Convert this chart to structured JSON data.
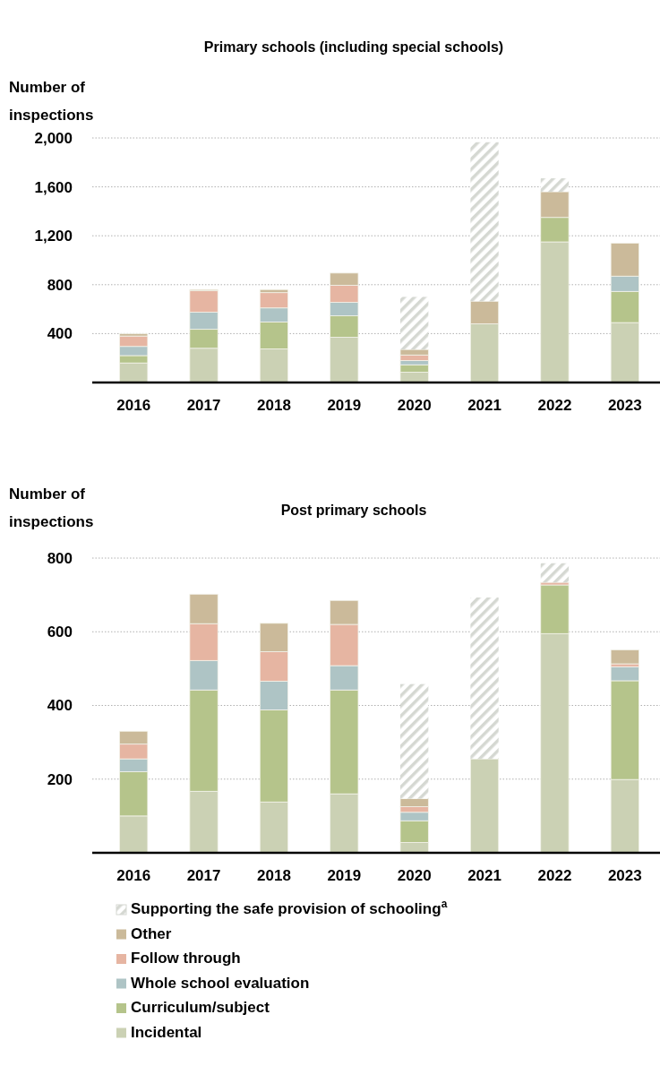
{
  "chart_data": [
    {
      "type": "bar",
      "title": "Primary schools (including special schools)",
      "ylabel": "Number of inspections",
      "stacked": true,
      "grid": "y",
      "legend": false,
      "categories": [
        "2016",
        "2017",
        "2018",
        "2019",
        "2020",
        "2021",
        "2022",
        "2023"
      ],
      "ylim": [
        0,
        2000
      ],
      "yticks": [
        400,
        800,
        {
          "value": 1200,
          "label": "1,200"
        },
        {
          "value": 1600,
          "label": "1,600"
        },
        {
          "value": 2000,
          "label": "2,000"
        }
      ],
      "series": [
        {
          "color": "#cbd1b4",
          "values": [
            160,
            280,
            275,
            370,
            85,
            480,
            1150,
            490
          ]
        },
        {
          "color": "#b5c48b",
          "values": [
            60,
            155,
            220,
            175,
            60,
            0,
            200,
            255
          ]
        },
        {
          "color": "#aec4c5",
          "values": [
            75,
            140,
            115,
            110,
            35,
            0,
            0,
            125
          ]
        },
        {
          "color": "#e6b5a2",
          "values": [
            85,
            175,
            125,
            140,
            45,
            0,
            0,
            0
          ]
        },
        {
          "color": "#cbba9a",
          "values": [
            20,
            10,
            25,
            100,
            45,
            185,
            210,
            270
          ]
        },
        {
          "color": "#d5d8d2",
          "values": [
            0,
            0,
            0,
            0,
            430,
            1300,
            110,
            0
          ]
        }
      ]
    },
    {
      "type": "bar",
      "title": "Post primary schools",
      "ylabel": "Number of inspections",
      "stacked": true,
      "grid": "y",
      "legend": "bottom",
      "categories": [
        "2016",
        "2017",
        "2018",
        "2019",
        "2020",
        "2021",
        "2022",
        "2023"
      ],
      "ylim": [
        0,
        800
      ],
      "yticks": [
        200,
        400,
        600,
        800
      ],
      "series": [
        {
          "name": "Incidental",
          "color": "#cbd1b4",
          "values": [
            100,
            167,
            138,
            160,
            28,
            255,
            595,
            199
          ]
        },
        {
          "name": "Curriculum/subject",
          "color": "#b5c48b",
          "values": [
            120,
            275,
            250,
            282,
            59,
            0,
            132,
            268
          ]
        },
        {
          "name": "Whole school evaluation",
          "color": "#aec4c5",
          "values": [
            35,
            80,
            78,
            66,
            23,
            0,
            0,
            38
          ]
        },
        {
          "name": "Follow through",
          "color": "#e6b5a2",
          "values": [
            40,
            100,
            80,
            112,
            15,
            0,
            7,
            8
          ]
        },
        {
          "name": "Other",
          "color": "#cbba9a",
          "values": [
            35,
            80,
            77,
            65,
            22,
            0,
            0,
            38
          ]
        },
        {
          "name": "Supporting the safe provision of schooling$^{a}$",
          "color": "#d5d8d2",
          "values": [
            0,
            0,
            0,
            0,
            311,
            438,
            52,
            0
          ]
        }
      ]
    }
  ]
}
